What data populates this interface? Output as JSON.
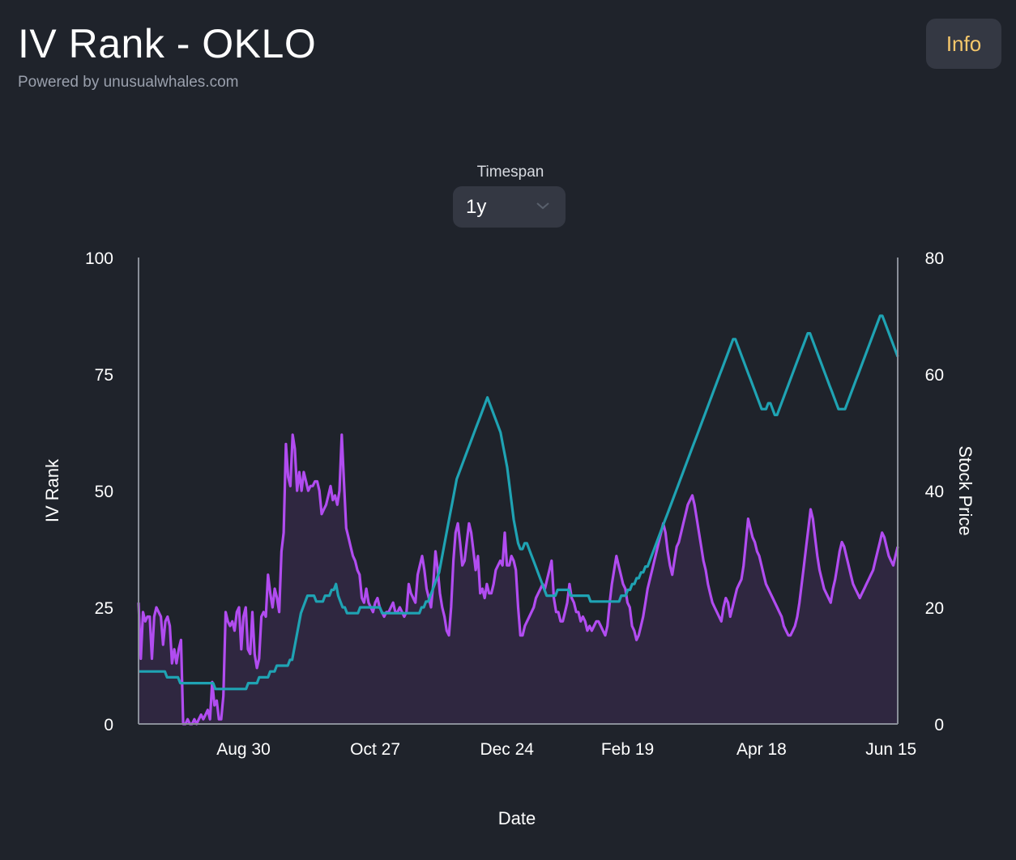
{
  "header": {
    "title": "IV Rank - OKLO",
    "subtitle": "Powered by unusualwhales.com",
    "info_label": "Info"
  },
  "timespan": {
    "label": "Timespan",
    "selected": "1y"
  },
  "colors": {
    "background": "#1f232b",
    "iv_rank_line": "#b14cf0",
    "iv_rank_fill": "#2f2740",
    "price_line": "#1fa3b3",
    "info_text": "#f5c76b"
  },
  "icons": {
    "select_arrow": "chevron-down-icon"
  },
  "chart_data": {
    "type": "line",
    "xlabel": "Date",
    "ylabel_left": "IV Rank",
    "ylabel_right": "Stock Price",
    "ylim_left": [
      0,
      100
    ],
    "ylim_right": [
      0,
      80
    ],
    "yticks_left": [
      "100",
      "75",
      "50",
      "25",
      "0"
    ],
    "yticks_right": [
      "80",
      "60",
      "40",
      "20",
      "0"
    ],
    "x_tick_labels": [
      "Aug 30",
      "Oct 27",
      "Dec 24",
      "Feb 19",
      "Apr 18",
      "Jun 15"
    ],
    "x_tick_index": [
      47,
      106,
      165,
      219,
      279,
      337
    ],
    "series": [
      {
        "axis": "left",
        "fill": true,
        "values": [
          26,
          14,
          24,
          22,
          23,
          23,
          14,
          23,
          25,
          24,
          23,
          17,
          22,
          23,
          21,
          13,
          16,
          13,
          16,
          18,
          0,
          0,
          1,
          0,
          0,
          1,
          0,
          1,
          2,
          1,
          2,
          3,
          1,
          9,
          4,
          5,
          1,
          1,
          6,
          24,
          22,
          21,
          22,
          20,
          24,
          25,
          16,
          23,
          25,
          16,
          15,
          24,
          15,
          12,
          14,
          23,
          24,
          23,
          32,
          28,
          25,
          29,
          27,
          24,
          37,
          41,
          60,
          53,
          51,
          62,
          59,
          50,
          54,
          50,
          54,
          52,
          50,
          51,
          51,
          52,
          52,
          50,
          45,
          46,
          47,
          49,
          51,
          48,
          49,
          47,
          50,
          62,
          52,
          42,
          40,
          38,
          36,
          35,
          33,
          32,
          27,
          26,
          29,
          26,
          25,
          24,
          26,
          27,
          25,
          24,
          23,
          24,
          24,
          25,
          26,
          24,
          24,
          25,
          24,
          23,
          24,
          30,
          28,
          27,
          26,
          32,
          34,
          36,
          33,
          29,
          27,
          25,
          30,
          37,
          33,
          28,
          25,
          23,
          20,
          19,
          25,
          35,
          41,
          43,
          39,
          34,
          35,
          39,
          43,
          41,
          37,
          33,
          36,
          28,
          29,
          27,
          30,
          28,
          28,
          30,
          33,
          34,
          35,
          34,
          41,
          34,
          34,
          36,
          35,
          33,
          25,
          19,
          19,
          21,
          22,
          23,
          24,
          25,
          27,
          28,
          29,
          30,
          29,
          31,
          33,
          35,
          27,
          24,
          24,
          22,
          22,
          24,
          26,
          30,
          27,
          26,
          24,
          24,
          22,
          23,
          22,
          20,
          21,
          20,
          21,
          22,
          22,
          21,
          20,
          19,
          21,
          26,
          30,
          33,
          36,
          34,
          32,
          30,
          29,
          26,
          25,
          21,
          20,
          18,
          19,
          21,
          23,
          26,
          29,
          31,
          33,
          35,
          37,
          39,
          41,
          43,
          41,
          37,
          34,
          32,
          35,
          38,
          39,
          41,
          43,
          45,
          47,
          48,
          49,
          47,
          44,
          41,
          38,
          35,
          33,
          30,
          28,
          26,
          25,
          24,
          23,
          22,
          25,
          27,
          26,
          23,
          25,
          27,
          29,
          30,
          31,
          34,
          39,
          44,
          42,
          40,
          39,
          37,
          36,
          34,
          32,
          30,
          29,
          28,
          27,
          26,
          25,
          24,
          23,
          21,
          20,
          19,
          19,
          20,
          21,
          23,
          26,
          30,
          34,
          38,
          42,
          46,
          44,
          40,
          36,
          33,
          31,
          29,
          28,
          27,
          26,
          29,
          31,
          34,
          37,
          39,
          38,
          36,
          34,
          32,
          30,
          29,
          28,
          27,
          28,
          29,
          30,
          31,
          32,
          33,
          35,
          37,
          39,
          41,
          40,
          38,
          36,
          35,
          34,
          36,
          38
        ],
        "note_omit": true
      },
      {
        "axis": "right",
        "fill": false,
        "values": [
          9,
          9,
          9,
          9,
          9,
          9,
          9,
          9,
          9,
          9,
          9,
          9,
          9,
          8,
          8,
          8,
          8,
          8,
          8,
          7,
          7,
          7,
          7,
          7,
          7,
          7,
          7,
          7,
          7,
          7,
          7,
          7,
          7,
          7,
          7,
          6,
          6,
          6,
          6,
          6,
          6,
          6,
          6,
          6,
          6,
          6,
          6,
          6,
          6,
          6,
          7,
          7,
          7,
          7,
          7,
          8,
          8,
          8,
          8,
          8,
          9,
          9,
          9,
          10,
          10,
          10,
          10,
          10,
          10,
          11,
          11,
          13,
          15,
          17,
          19,
          20,
          21,
          22,
          22,
          22,
          22,
          21,
          21,
          21,
          21,
          22,
          22,
          22,
          23,
          23,
          24,
          22,
          21,
          20,
          20,
          19,
          19,
          19,
          19,
          19,
          19,
          20,
          20,
          20,
          20,
          20,
          20,
          20,
          20,
          20,
          20,
          19,
          19,
          19,
          19,
          19,
          19,
          19,
          19,
          19,
          19,
          19,
          19,
          19,
          19,
          19,
          19,
          19,
          19,
          20,
          20,
          21,
          21,
          22,
          23,
          24,
          25,
          26,
          28,
          30,
          32,
          34,
          36,
          38,
          40,
          42,
          43,
          44,
          45,
          46,
          47,
          48,
          49,
          50,
          51,
          52,
          53,
          54,
          55,
          56,
          55,
          54,
          53,
          52,
          51,
          50,
          48,
          46,
          44,
          41,
          38,
          35,
          33,
          31,
          30,
          30,
          31,
          31,
          30,
          29,
          28,
          27,
          26,
          25,
          24,
          23,
          22,
          22,
          22,
          22,
          22,
          23,
          23,
          23,
          23,
          23,
          23,
          22,
          22,
          22,
          22,
          22,
          22,
          22,
          22,
          22,
          21,
          21,
          21,
          21,
          21,
          21,
          21,
          21,
          21,
          21,
          21,
          21,
          21,
          21,
          22,
          22,
          22,
          23,
          23,
          24,
          24,
          25,
          25,
          26,
          26,
          27,
          27,
          28,
          29,
          30,
          31,
          32,
          33,
          34,
          35,
          36,
          37,
          38,
          39,
          40,
          41,
          42,
          43,
          44,
          45,
          46,
          47,
          48,
          49,
          50,
          51,
          52,
          53,
          54,
          55,
          56,
          57,
          58,
          59,
          60,
          61,
          62,
          63,
          64,
          65,
          66,
          66,
          65,
          64,
          63,
          62,
          61,
          60,
          59,
          58,
          57,
          56,
          55,
          54,
          54,
          54,
          55,
          55,
          54,
          53,
          53,
          54,
          55,
          56,
          57,
          58,
          59,
          60,
          61,
          62,
          63,
          64,
          65,
          66,
          67,
          67,
          66,
          65,
          64,
          63,
          62,
          61,
          60,
          59,
          58,
          57,
          56,
          55,
          54,
          54,
          54,
          54,
          55,
          56,
          57,
          58,
          59,
          60,
          61,
          62,
          63,
          64,
          65,
          66,
          67,
          68,
          69,
          70,
          70,
          69,
          68,
          67,
          66,
          65,
          64,
          63
        ],
        "note_omit": true
      }
    ]
  }
}
